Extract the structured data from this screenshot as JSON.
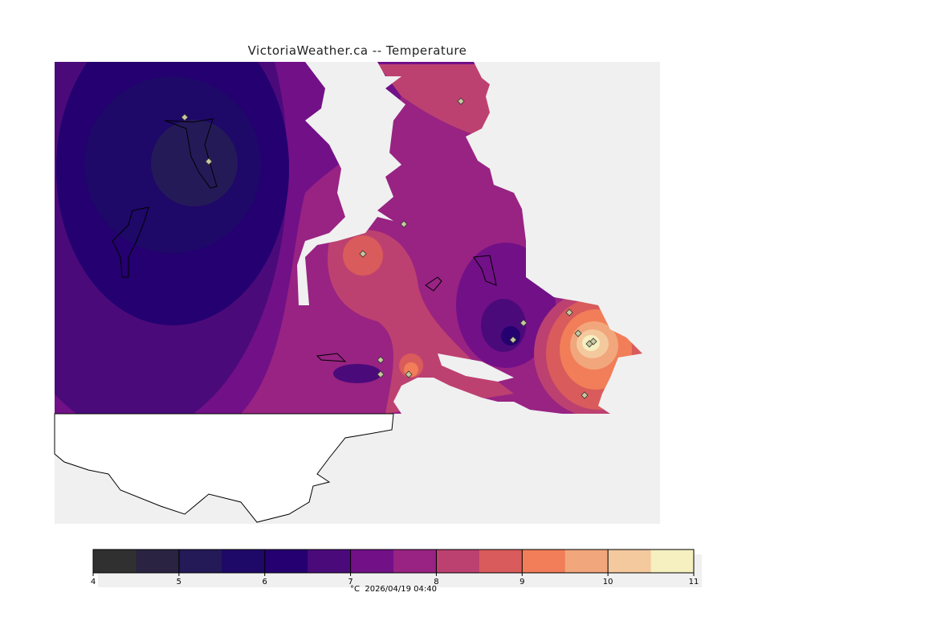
{
  "title": "VictoriaWeather.ca -- Temperature",
  "caption": {
    "unit": "°C",
    "timestamp": "2026/04/19 04:40"
  },
  "colorbar": {
    "ticks": [
      "4",
      "5",
      "6",
      "7",
      "8",
      "9",
      "10",
      "11"
    ],
    "min": 4,
    "max": 11,
    "step": 0.5,
    "colors": [
      "#303030",
      "#2a2342",
      "#251a58",
      "#1e0868",
      "#240070",
      "#4b0a7a",
      "#721088",
      "#982383",
      "#bd4170",
      "#d95b5b",
      "#f17e58",
      "#f2a67c",
      "#f4c99e",
      "#f6efc0"
    ]
  },
  "colors": {
    "water": "#f0f0f0",
    "land_outside": "#ffffff"
  }
}
